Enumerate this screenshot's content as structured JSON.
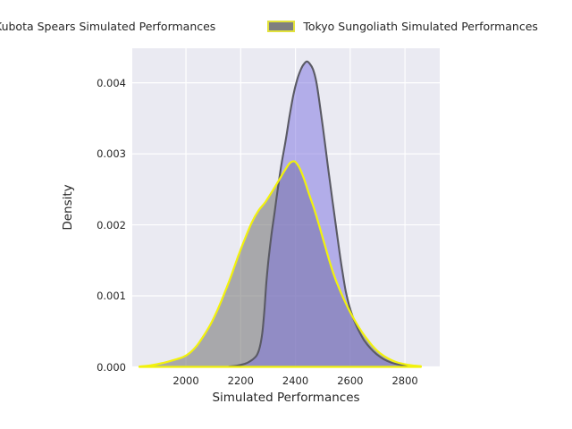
{
  "figure": {
    "background": "#ffffff"
  },
  "legend": {
    "entries": [
      {
        "label": "Kubota Spears Simulated Performances",
        "swatch_fill": "#9790e4",
        "swatch_border": "#5a5a64"
      },
      {
        "label": "Tokyo Sungoliath Simulated Performances",
        "swatch_fill": "#7f7f7f",
        "swatch_border": "#e2e23c"
      }
    ]
  },
  "chart_data": {
    "type": "area",
    "subtype": "kde-density",
    "title": "",
    "xlabel": "Simulated Performances",
    "ylabel": "Density",
    "xlim": [
      1804,
      2927
    ],
    "ylim": [
      0,
      0.004486
    ],
    "grid": true,
    "legend_position": "top",
    "axes_background": "#eaeaf2",
    "grid_color": "#ffffff",
    "tick_color": "#262626",
    "x_ticks": [
      {
        "label": "2000",
        "value": 2000
      },
      {
        "label": "2200",
        "value": 2200
      },
      {
        "label": "2400",
        "value": 2400
      },
      {
        "label": "2600",
        "value": 2600
      },
      {
        "label": "2800",
        "value": 2800
      }
    ],
    "y_ticks": [
      {
        "label": "0.000",
        "value": 0.0
      },
      {
        "label": "0.001",
        "value": 0.001
      },
      {
        "label": "0.002",
        "value": 0.002
      },
      {
        "label": "0.003",
        "value": 0.003
      },
      {
        "label": "0.004",
        "value": 0.004
      }
    ],
    "series": [
      {
        "name": "Tokyo Sungoliath Simulated Performances",
        "fill": "#808080",
        "fill_opacity": 0.62,
        "edge": "#f2f20c",
        "edge_width": 2.2,
        "points": [
          [
            1830,
            5e-06
          ],
          [
            1870,
            2e-05
          ],
          [
            1910,
            5e-05
          ],
          [
            1950,
            9e-05
          ],
          [
            1990,
            0.00014
          ],
          [
            2015,
            0.0002
          ],
          [
            2040,
            0.0003
          ],
          [
            2065,
            0.00044
          ],
          [
            2090,
            0.0006
          ],
          [
            2115,
            0.0008
          ],
          [
            2140,
            0.00103
          ],
          [
            2165,
            0.00128
          ],
          [
            2190,
            0.00155
          ],
          [
            2215,
            0.0018
          ],
          [
            2240,
            0.00203
          ],
          [
            2265,
            0.0022
          ],
          [
            2290,
            0.00232
          ],
          [
            2315,
            0.00247
          ],
          [
            2340,
            0.00263
          ],
          [
            2360,
            0.00276
          ],
          [
            2380,
            0.00287
          ],
          [
            2398,
            0.00289
          ],
          [
            2415,
            0.0028
          ],
          [
            2432,
            0.00264
          ],
          [
            2450,
            0.00243
          ],
          [
            2468,
            0.00223
          ],
          [
            2486,
            0.002
          ],
          [
            2504,
            0.00176
          ],
          [
            2522,
            0.00152
          ],
          [
            2540,
            0.0013
          ],
          [
            2558,
            0.00112
          ],
          [
            2576,
            0.00096
          ],
          [
            2596,
            0.0008
          ],
          [
            2616,
            0.00066
          ],
          [
            2638,
            0.00052
          ],
          [
            2660,
            0.0004
          ],
          [
            2685,
            0.00028
          ],
          [
            2710,
            0.00019
          ],
          [
            2738,
            0.00012
          ],
          [
            2766,
            7e-05
          ],
          [
            2796,
            4e-05
          ],
          [
            2826,
            2e-05
          ],
          [
            2858,
            1e-05
          ]
        ]
      },
      {
        "name": "Kubota Spears Simulated Performances",
        "fill": "#7a6fe0",
        "fill_opacity": 0.5,
        "edge": "#5a5a64",
        "edge_width": 2.1,
        "points": [
          [
            2158,
            5e-06
          ],
          [
            2190,
            2e-05
          ],
          [
            2220,
            5e-05
          ],
          [
            2242,
            0.0001
          ],
          [
            2258,
            0.00016
          ],
          [
            2270,
            0.00028
          ],
          [
            2279,
            0.00048
          ],
          [
            2287,
            0.00082
          ],
          [
            2294,
            0.0012
          ],
          [
            2302,
            0.00152
          ],
          [
            2312,
            0.00185
          ],
          [
            2324,
            0.00218
          ],
          [
            2336,
            0.00252
          ],
          [
            2350,
            0.00288
          ],
          [
            2364,
            0.00318
          ],
          [
            2378,
            0.00352
          ],
          [
            2392,
            0.00382
          ],
          [
            2406,
            0.00404
          ],
          [
            2420,
            0.00419
          ],
          [
            2432,
            0.00427
          ],
          [
            2442,
            0.0043
          ],
          [
            2452,
            0.00427
          ],
          [
            2464,
            0.00419
          ],
          [
            2476,
            0.00402
          ],
          [
            2488,
            0.00372
          ],
          [
            2500,
            0.00338
          ],
          [
            2512,
            0.00302
          ],
          [
            2524,
            0.00266
          ],
          [
            2536,
            0.00232
          ],
          [
            2548,
            0.00198
          ],
          [
            2560,
            0.00164
          ],
          [
            2572,
            0.00133
          ],
          [
            2584,
            0.00106
          ],
          [
            2598,
            0.00084
          ],
          [
            2612,
            0.00068
          ],
          [
            2630,
            0.00052
          ],
          [
            2650,
            0.00038
          ],
          [
            2672,
            0.00027
          ],
          [
            2696,
            0.00018
          ],
          [
            2722,
            0.00011
          ],
          [
            2750,
            6e-05
          ],
          [
            2780,
            3e-05
          ],
          [
            2812,
            1e-05
          ]
        ]
      }
    ]
  }
}
